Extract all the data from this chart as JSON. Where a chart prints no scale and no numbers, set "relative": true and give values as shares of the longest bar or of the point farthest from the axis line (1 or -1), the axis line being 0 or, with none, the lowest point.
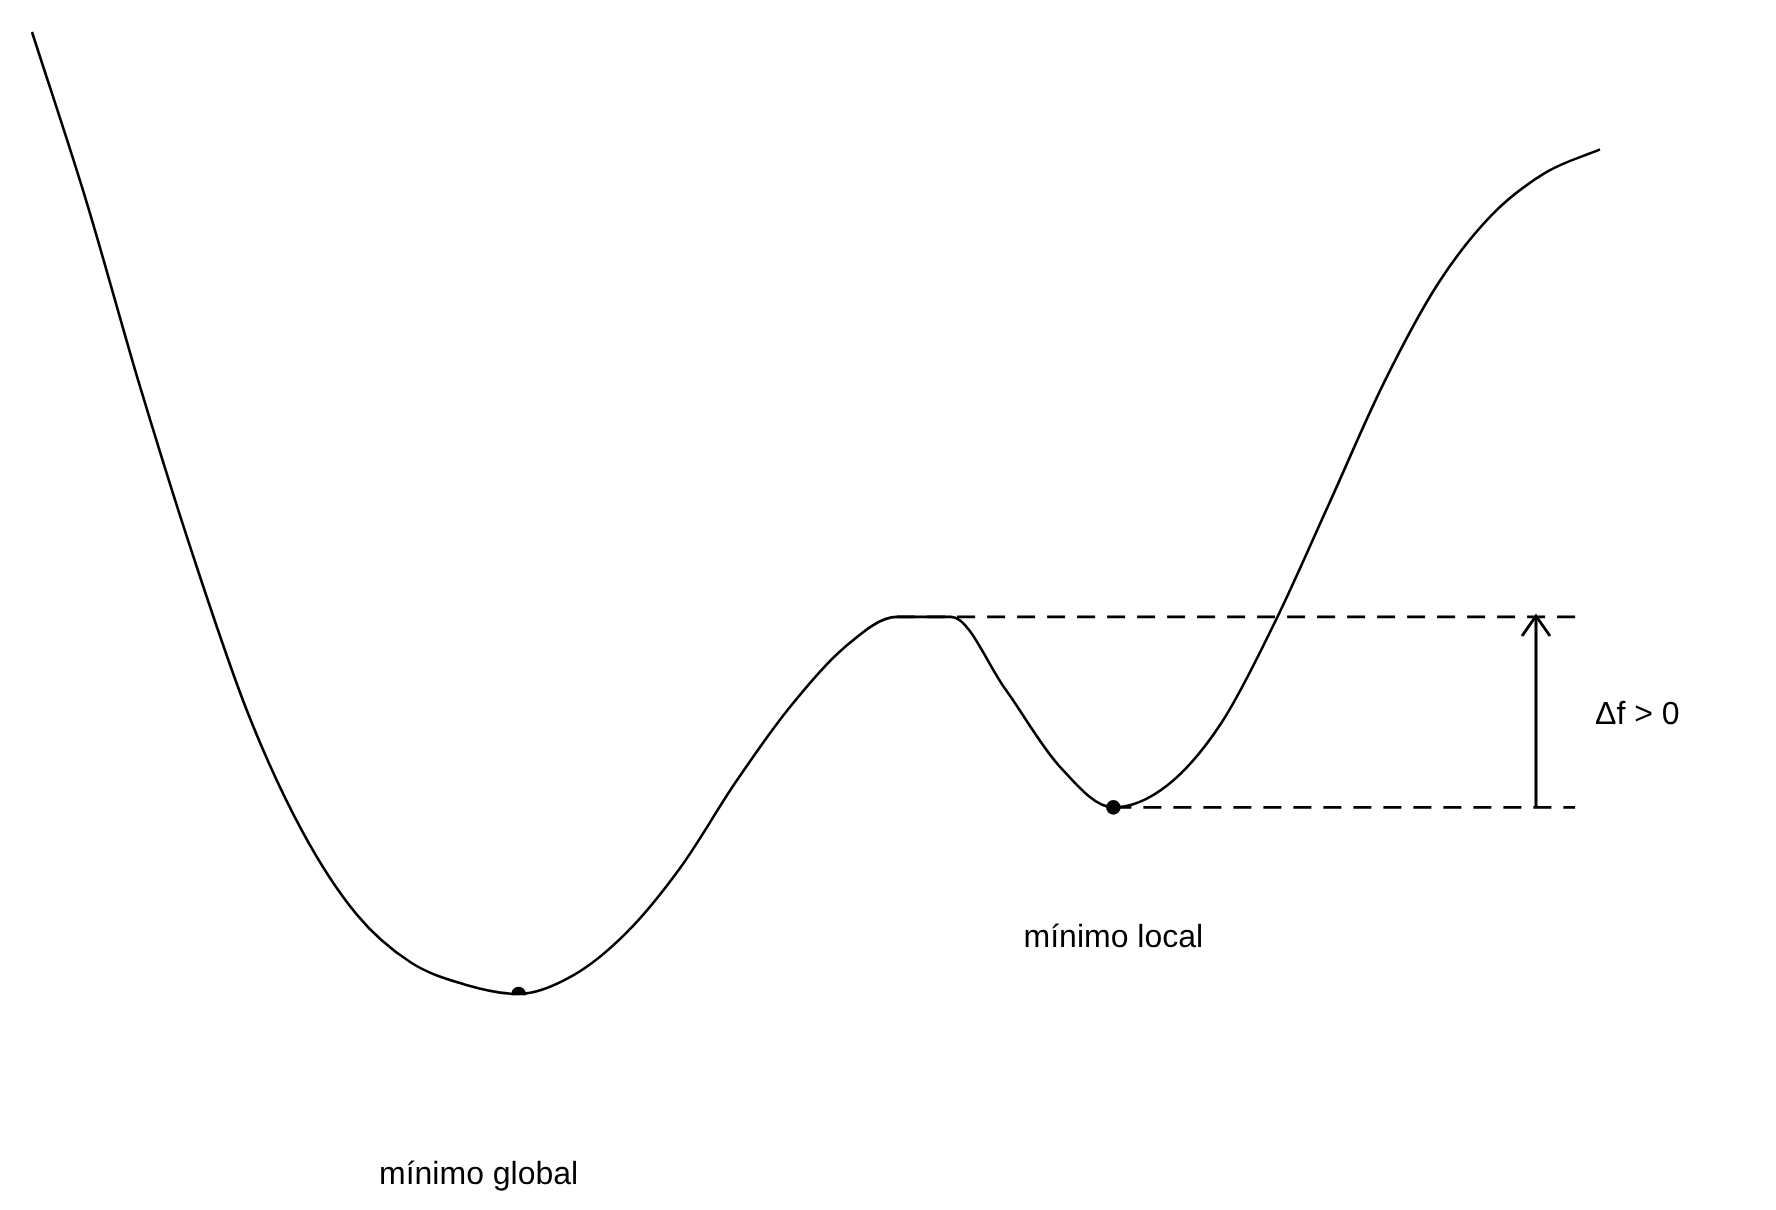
{
  "chart_data": {
    "type": "line",
    "relative": true,
    "categories": [
      null,
      null,
      null,
      null,
      null,
      null,
      null,
      null,
      null,
      null,
      null,
      null,
      null,
      null,
      null,
      null,
      null,
      null,
      null,
      null,
      null,
      null,
      null,
      null,
      null,
      null,
      null,
      null,
      null,
      null
    ],
    "series": [
      {
        "color": "#000000",
        "values": [
          1.0,
          0.825,
          0.631,
          0.452,
          0.291,
          0.169,
          0.083,
          0.033,
          0.01,
          0,
          0.019,
          0.064,
          0.132,
          0.219,
          0.297,
          0.359,
          0.392,
          0.392,
          0.317,
          0.237,
          0.194,
          0.217,
          0.282,
          0.388,
          0.511,
          0.635,
          0.738,
          0.81,
          0.854,
          0.878
        ]
      }
    ],
    "ref_lines": [
      {
        "axis": "y",
        "value": 0.392,
        "line_style": "dashed"
      },
      {
        "axis": "y",
        "value": 0.194,
        "line_style": "dashed"
      }
    ],
    "annotations": [
      "mínimo global",
      "mínimo local",
      "Δf > 0"
    ],
    "legend": false,
    "line_style": "solid"
  }
}
